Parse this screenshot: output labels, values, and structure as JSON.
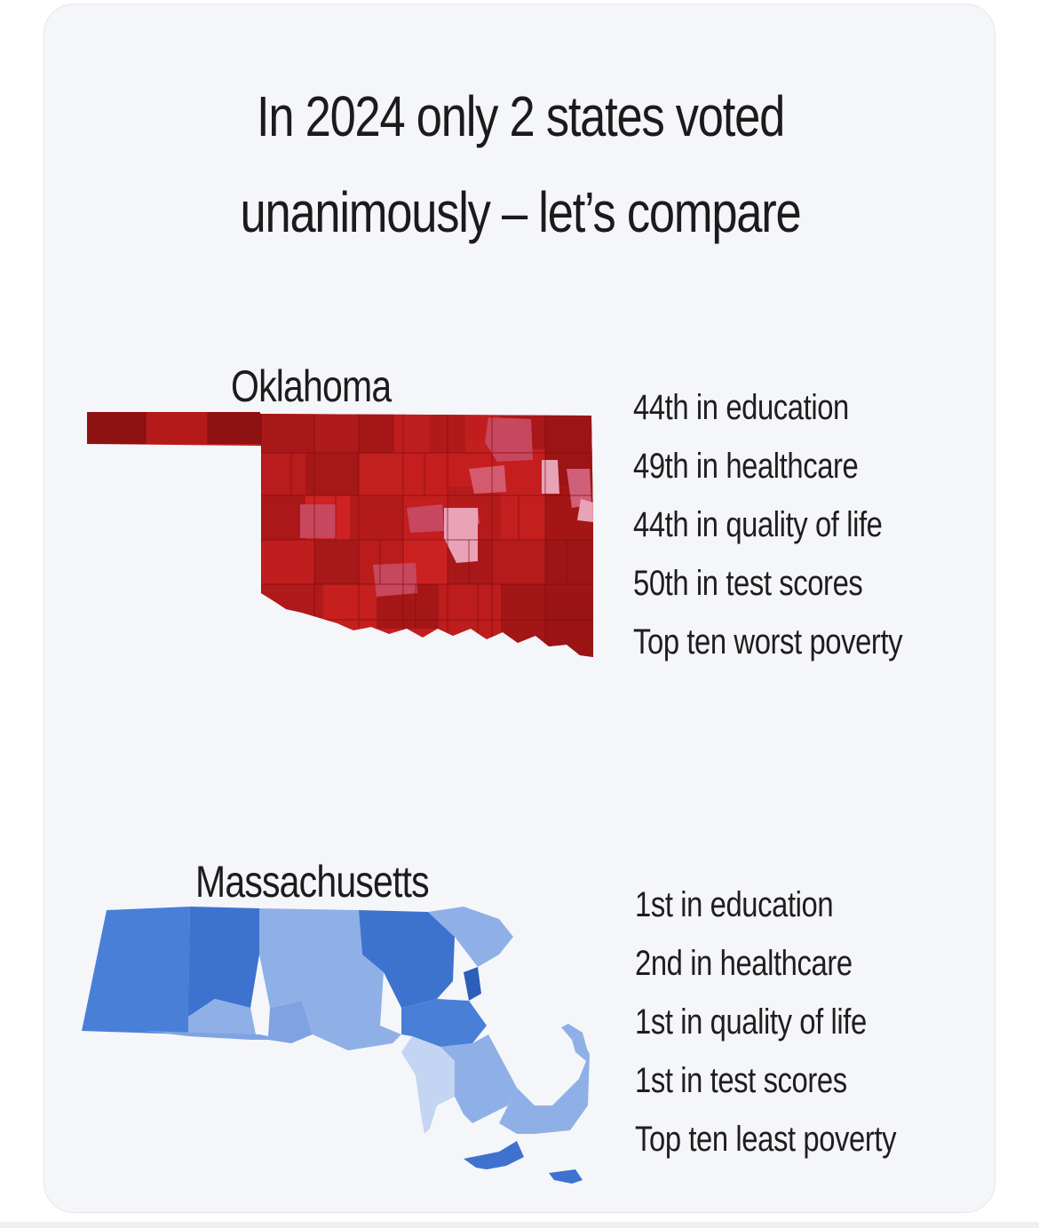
{
  "title": {
    "line1": "In 2024 only 2 states voted",
    "line2": "unanimously – let’s compare"
  },
  "states": [
    {
      "name": "Oklahoma",
      "color": "#c81f1f",
      "stats": [
        "44th in education",
        "49th in healthcare",
        "44th in quality of life",
        "50th in test scores",
        "Top ten worst poverty"
      ]
    },
    {
      "name": "Massachusetts",
      "color": "#4a7fd8",
      "stats": [
        "1st in education",
        "2nd in healthcare",
        "1st in quality of life",
        "1st in test scores",
        "Top ten least poverty"
      ]
    }
  ],
  "colors": {
    "background": "#f5f6f9",
    "text": "#1b1b1b",
    "red_dark": "#8e1212",
    "red": "#c81f1f",
    "red_light": "#c7475e",
    "pink": "#e8a3b6",
    "blue_dark": "#2e5fb8",
    "blue": "#4a7fd8",
    "blue_light": "#8fb0e6",
    "blue_pale": "#c3d5f2"
  }
}
